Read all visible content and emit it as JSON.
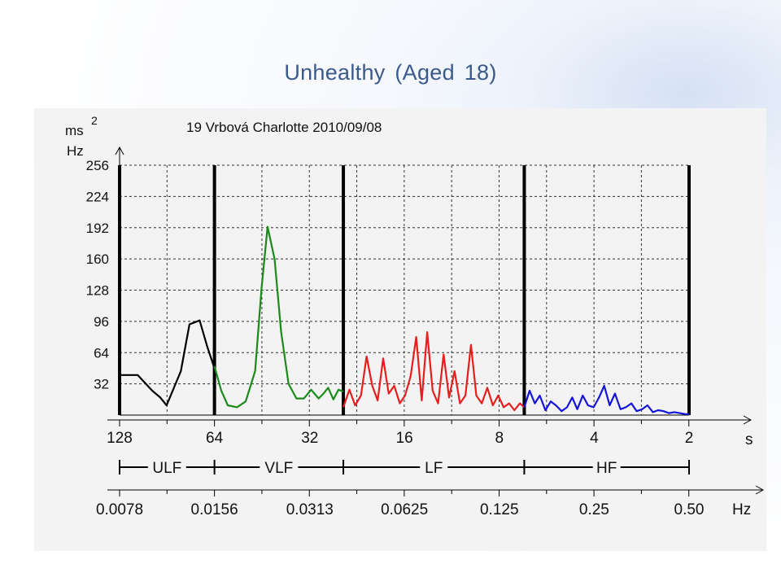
{
  "slide": {
    "title": "Unhealthy (Aged 18)"
  },
  "chart_data": {
    "type": "line",
    "title": "19 Vrbová Charlotte 2010/09/08",
    "ylabel_top": "ms",
    "ylabel_exp": "2",
    "ylabel_bottom": "Hz",
    "ylim": [
      0,
      256
    ],
    "yticks": [
      "256",
      "224",
      "192",
      "160",
      "128",
      "96",
      "64",
      "32"
    ],
    "yticks_values": [
      256,
      224,
      192,
      160,
      128,
      96,
      64,
      32
    ],
    "period_axis_label": "s",
    "period_ticks": [
      "128",
      "64",
      "32",
      "16",
      "8",
      "4",
      "2"
    ],
    "freq_axis_label": "Hz",
    "freq_ticks": [
      "0.0078",
      "0.0156",
      "0.0313",
      "0.0625",
      "0.125",
      "0.25",
      "0.50"
    ],
    "freq_ticks_values": [
      0.0078,
      0.0156,
      0.0313,
      0.0625,
      0.125,
      0.25,
      0.5
    ],
    "bands": [
      {
        "name": "ULF",
        "from": 0.0078,
        "to": 0.0156
      },
      {
        "name": "VLF",
        "from": 0.0156,
        "to": 0.04
      },
      {
        "name": "LF",
        "from": 0.04,
        "to": 0.15
      },
      {
        "name": "HF",
        "from": 0.15,
        "to": 0.5
      }
    ],
    "grid": true,
    "series": [
      {
        "band": "ULF",
        "color": "#000000",
        "x": [
          0.0078,
          0.0089,
          0.0099,
          0.0105,
          0.011,
          0.0122,
          0.013,
          0.014,
          0.0148,
          0.0156
        ],
        "y": [
          41,
          41,
          25,
          18,
          10,
          45,
          93,
          97,
          70,
          48
        ]
      },
      {
        "band": "VLF",
        "color": "#1a8a1a",
        "x": [
          0.0156,
          0.0164,
          0.0172,
          0.0184,
          0.0196,
          0.021,
          0.022,
          0.023,
          0.0242,
          0.0254,
          0.0268,
          0.0284,
          0.03,
          0.0316,
          0.0334,
          0.0346,
          0.0358,
          0.0372,
          0.0386,
          0.04
        ],
        "y": [
          50,
          25,
          10,
          8,
          14,
          45,
          130,
          193,
          160,
          85,
          32,
          17,
          17,
          26,
          17,
          22,
          28,
          16,
          26,
          24
        ]
      },
      {
        "band": "LF",
        "color": "#e61e1e",
        "x": [
          0.04,
          0.0418,
          0.0436,
          0.0455,
          0.0474,
          0.0494,
          0.0514,
          0.0535,
          0.0557,
          0.058,
          0.0604,
          0.0628,
          0.0654,
          0.0681,
          0.0709,
          0.0738,
          0.0768,
          0.0799,
          0.0832,
          0.0866,
          0.0901,
          0.0938,
          0.0976,
          0.1016,
          0.1057,
          0.11,
          0.1145,
          0.1192,
          0.124,
          0.129,
          0.1342,
          0.1396,
          0.1452,
          0.15
        ],
        "y": [
          8,
          26,
          10,
          20,
          60,
          30,
          15,
          58,
          22,
          30,
          12,
          20,
          40,
          80,
          15,
          85,
          25,
          12,
          62,
          18,
          45,
          12,
          20,
          72,
          20,
          12,
          28,
          10,
          20,
          8,
          12,
          5,
          12,
          8
        ]
      },
      {
        "band": "HF",
        "color": "#1414d8",
        "x": [
          0.15,
          0.156,
          0.162,
          0.168,
          0.175,
          0.182,
          0.189,
          0.197,
          0.205,
          0.213,
          0.221,
          0.23,
          0.239,
          0.249,
          0.259,
          0.269,
          0.28,
          0.291,
          0.303,
          0.315,
          0.328,
          0.341,
          0.355,
          0.369,
          0.384,
          0.399,
          0.415,
          0.432,
          0.449,
          0.467,
          0.486,
          0.5
        ],
        "y": [
          8,
          25,
          12,
          20,
          5,
          14,
          10,
          4,
          8,
          18,
          6,
          20,
          10,
          8,
          18,
          30,
          10,
          22,
          6,
          8,
          12,
          4,
          6,
          10,
          3,
          5,
          4,
          2,
          3,
          2,
          1,
          1
        ]
      }
    ]
  }
}
